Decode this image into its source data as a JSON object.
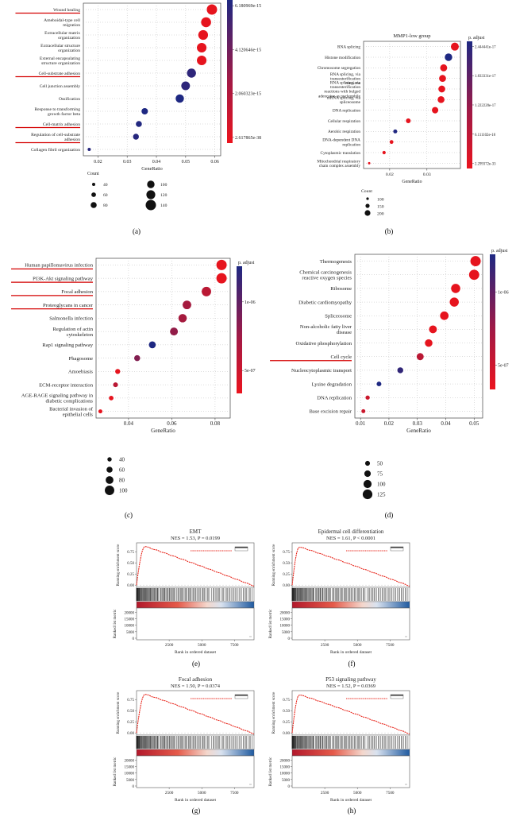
{
  "figure_labels": [
    "(a)",
    "(b)",
    "(c)",
    "(d)",
    "(e)",
    "(f)",
    "(g)",
    "(h)"
  ],
  "chart_data": [
    {
      "panel": "a",
      "type": "scatter",
      "title": "",
      "xlabel": "GeneRatio",
      "ylabel": "",
      "xlim": [
        0.015,
        0.062
      ],
      "xticks": [
        0.02,
        0.03,
        0.04,
        0.05,
        0.06
      ],
      "categories": [
        "Wound healing",
        "Ameboidal-type cell migration",
        "Extracellular matrix organization",
        "Extracellular structure organization",
        "External encapsulating structure organization",
        "Cell-substrate adhesion",
        "Cell junction assembly",
        "Ossification",
        "Response to transforming growth factor beta",
        "Cell-matrix adhesion",
        "Regulation of cell-substrate adhesion",
        "Collagen fibril organization"
      ],
      "x": [
        0.059,
        0.057,
        0.056,
        0.0555,
        0.0555,
        0.052,
        0.05,
        0.048,
        0.036,
        0.034,
        0.033,
        0.017
      ],
      "count": [
        140,
        135,
        132,
        130,
        130,
        122,
        117,
        112,
        85,
        80,
        78,
        40
      ],
      "p_adjust": [
        2.6e-38,
        2.6e-38,
        2.6e-38,
        2.6e-38,
        2.6e-38,
        1e-16,
        1e-16,
        7.8e-15,
        7.8e-15,
        3e-15,
        8e-16,
        8e-16
      ],
      "highlighted": [
        "Wound healing",
        "Cell-substrate adhesion",
        "Cell-matrix adhesion",
        "Regulation of cell-substrate adhesion"
      ],
      "colorbar_ticks": [
        "6.180969e-15",
        "4.120646e-15",
        "2.060323e-15",
        "2.617865e-38"
      ],
      "colorbar_title": "",
      "count_legend_title": "Count",
      "count_legend": [
        40,
        60,
        80,
        100,
        120,
        140
      ]
    },
    {
      "panel": "b",
      "type": "scatter",
      "title": "MMP1-low group",
      "xlabel": "GeneRatio",
      "ylabel": "",
      "xlim": [
        0.013,
        0.039
      ],
      "xticks": [
        0.02,
        0.03
      ],
      "categories": [
        "RNA splicing",
        "Histone modification",
        "Chromosome segregation",
        "RNA splicing, via transesterification reactions",
        "RNA splicing, via transesterification reactions with bulged adenosine as nucleophile",
        "mRNA splicing, via spliceosome",
        "DNA replication",
        "Cellular respiration",
        "Aerobic respiration",
        "DNA-dependent DNA replication",
        "Cytoplasmic translation",
        "Mitochondrial respiratory chain complex assembly"
      ],
      "x": [
        0.0375,
        0.0358,
        0.0345,
        0.0342,
        0.034,
        0.0338,
        0.0322,
        0.025,
        0.0215,
        0.0205,
        0.0185,
        0.0145
      ],
      "count": [
        270,
        255,
        240,
        238,
        236,
        234,
        222,
        170,
        145,
        140,
        125,
        95
      ],
      "p_adjust": [
        2.3e-33,
        2.44e-17,
        2.3e-33,
        2.3e-33,
        2.3e-33,
        2.3e-33,
        2.3e-33,
        2.3e-33,
        1.5e-17,
        2.3e-33,
        2.3e-33,
        2.3e-33
      ],
      "colorbar_title": "p. adjust",
      "colorbar_ticks": [
        "2.444441e-17",
        "1.833331e-17",
        "1.222220e-17",
        "6.111102e-18",
        "2.299372e-33"
      ],
      "count_legend_title": "Count",
      "count_legend": [
        100,
        150,
        200
      ]
    },
    {
      "panel": "c",
      "type": "scatter",
      "title": "",
      "xlabel": "GeneRatio",
      "ylabel": "",
      "xlim": [
        0.025,
        0.087
      ],
      "xticks": [
        0.04,
        0.06,
        0.08
      ],
      "categories": [
        "Human papillomavirus infection",
        "PI3K-Akt signaling pathway",
        "Focal adhesion",
        "Proteoglycans in cancer",
        "Salmonella infection",
        "Regulation of actin cytoskeleton",
        "Rap1 signaling pathway",
        "Phagosome",
        "Amoebiasis",
        "ECM-receptor interaction",
        "AGE-RAGE signaling pathway in diabetic complications",
        "Bacterial invasion of epithelial cells"
      ],
      "x": [
        0.083,
        0.083,
        0.076,
        0.067,
        0.065,
        0.061,
        0.051,
        0.044,
        0.035,
        0.034,
        0.032,
        0.027
      ],
      "count": [
        110,
        110,
        100,
        90,
        87,
        82,
        70,
        60,
        48,
        46,
        43,
        36
      ],
      "p_adjust": [
        1e-08,
        1e-08,
        3e-08,
        5e-08,
        5e-08,
        8e-08,
        1.45e-06,
        1.2e-07,
        1e-08,
        3e-08,
        1e-08,
        1e-08
      ],
      "highlighted": [
        "Human papillomavirus infection",
        "PI3K-Akt signaling pathway",
        "Focal adhesion",
        "Proteoglycans in cancer"
      ],
      "colorbar_title": "p. adjust",
      "colorbar_ticks": [
        "1e-06",
        "5e-07"
      ],
      "count_legend_title": "",
      "count_legend": [
        40,
        60,
        80,
        100
      ]
    },
    {
      "panel": "d",
      "type": "scatter",
      "title": "",
      "xlabel": "GeneRatio",
      "ylabel": "",
      "xlim": [
        0.008,
        0.053
      ],
      "xticks": [
        0.01,
        0.02,
        0.03,
        0.04,
        0.05
      ],
      "categories": [
        "Thermogenesis",
        "Chemical carcinogenesis reactive oxygen species",
        "Ribosome",
        "Diabetic cardiomyopathy",
        "Spliceosome",
        "Non-alcoholic fatty liver disease",
        "Oxidative phosphorylation",
        "Cell cycle",
        "Nucleocytoplasmic transport",
        "Lysine degradation",
        "DNA replication",
        "Base excision repair"
      ],
      "x": [
        0.0505,
        0.05,
        0.0435,
        0.043,
        0.0395,
        0.0355,
        0.034,
        0.031,
        0.024,
        0.0165,
        0.0125,
        0.011
      ],
      "count": [
        135,
        133,
        117,
        116,
        107,
        96,
        92,
        84,
        66,
        47,
        40,
        36
      ],
      "p_adjust": [
        1e-08,
        1e-08,
        1e-08,
        1e-08,
        1e-08,
        1e-08,
        1e-08,
        3e-08,
        9e-07,
        1.45e-06,
        2e-08,
        2e-08
      ],
      "highlighted": [
        "Cell cycle"
      ],
      "colorbar_title": "p. adjust",
      "colorbar_ticks": [
        "1e-06",
        "5e-07"
      ],
      "count_legend_title": "",
      "count_legend": [
        50,
        75,
        100,
        125
      ]
    },
    {
      "panel": "e",
      "type": "line",
      "title": "EMT",
      "stat": "NES = 1.53, P = 0.0199",
      "ylabel": "Running enrichment score",
      "ylabel2": "Ranked list metric",
      "xlabel": "Rank in ordered dataset",
      "xticks": [
        2500,
        5000,
        7500
      ],
      "yticks": [
        0.0,
        0.25,
        0.5,
        0.75
      ],
      "yticks2": [
        0,
        5000,
        10000,
        15000,
        20000
      ],
      "es_peak_fraction": 0.07,
      "es_peak": 0.87,
      "es_end": -0.02
    },
    {
      "panel": "f",
      "type": "line",
      "title": "Epidermal cell differentiation",
      "stat": "NES = 1.61, P < 0.0001",
      "ylabel": "Running enrichment score",
      "ylabel2": "Ranked list metric",
      "xlabel": "Rank in ordered dataset",
      "xticks": [
        2500,
        5000,
        7500
      ],
      "yticks": [
        0.0,
        0.25,
        0.5,
        0.75
      ],
      "yticks2": [
        0,
        5000,
        10000,
        15000,
        20000
      ],
      "es_peak_fraction": 0.06,
      "es_peak": 0.86,
      "es_end": -0.02
    },
    {
      "panel": "g",
      "type": "line",
      "title": "Focal adhesion",
      "stat": "NES = 1.50, P = 0.0374",
      "ylabel": "Running enrichment score",
      "ylabel2": "Ranked list metric",
      "xlabel": "Rank in ordered dataset",
      "xticks": [
        2500,
        5000,
        7500
      ],
      "yticks": [
        0.0,
        0.25,
        0.5,
        0.75
      ],
      "yticks2": [
        0,
        5000,
        10000,
        15000,
        20000
      ],
      "es_peak_fraction": 0.07,
      "es_peak": 0.87,
      "es_end": -0.02
    },
    {
      "panel": "h",
      "type": "line",
      "title": "P53 signaling pathway",
      "stat": "NES = 1.52, P = 0.0369",
      "ylabel": "Running enrichment score",
      "ylabel2": "Ranked list metric",
      "xlabel": "Rank in ordered dataset",
      "xticks": [
        2500,
        5000,
        7500
      ],
      "yticks": [
        0.0,
        0.25,
        0.5,
        0.75
      ],
      "yticks2": [
        0,
        5000,
        10000,
        15000,
        20000
      ],
      "es_peak_fraction": 0.06,
      "es_peak": 0.86,
      "es_end": -0.02
    }
  ]
}
